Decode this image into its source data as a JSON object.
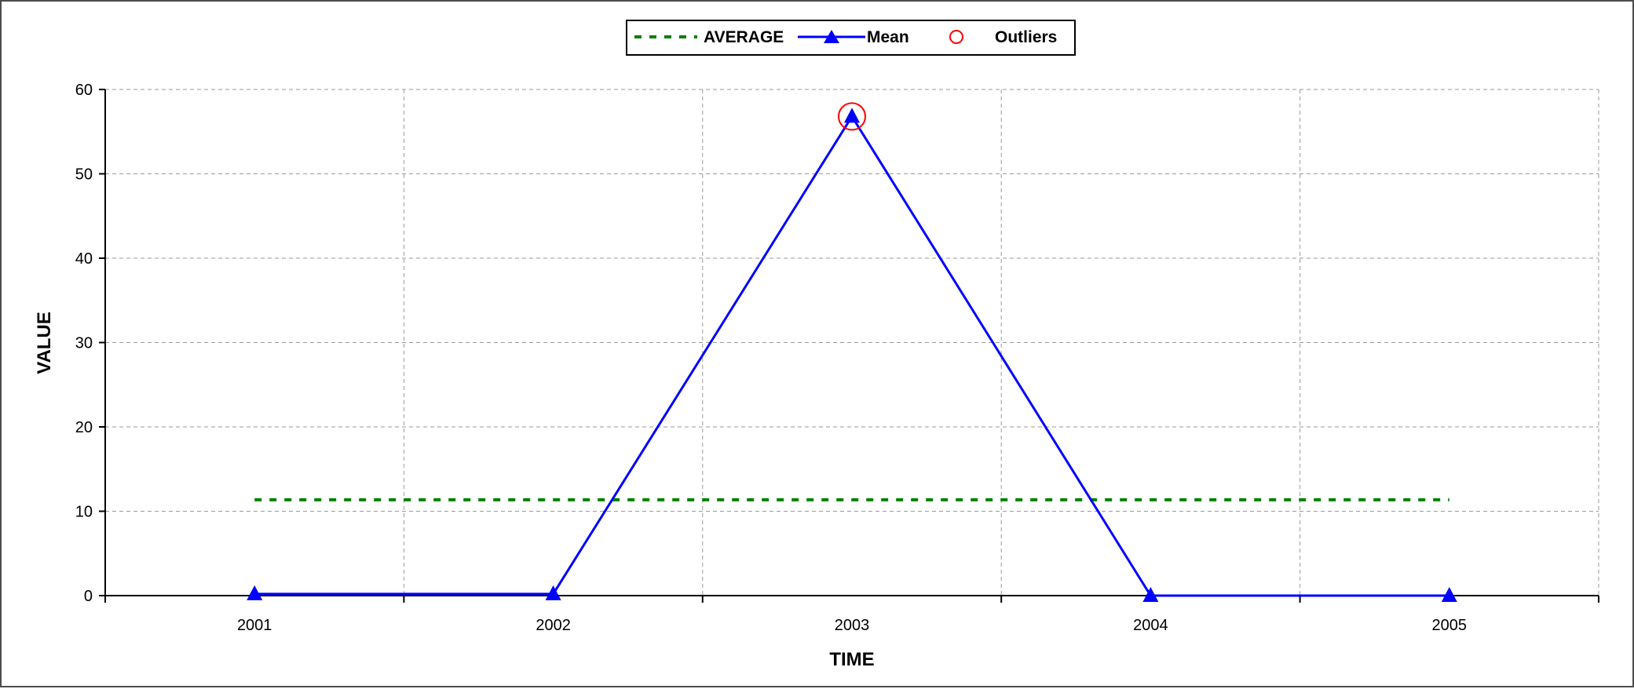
{
  "chart_data": {
    "type": "line",
    "xlabel": "TIME",
    "ylabel": "VALUE",
    "categories": [
      "2001",
      "2002",
      "2003",
      "2004",
      "2005"
    ],
    "ylim": [
      0,
      60
    ],
    "yticks": [
      0,
      10,
      20,
      30,
      40,
      50,
      60
    ],
    "grid": true,
    "legend_position": "top-center",
    "series": [
      {
        "name": "AVERAGE",
        "kind": "line",
        "style": "dashed",
        "color": "#008000",
        "values": [
          11.36,
          11.36,
          11.36,
          11.36,
          11.36
        ]
      },
      {
        "name": "Mean",
        "kind": "line-marker",
        "marker": "triangle",
        "color": "#0000ff",
        "values": [
          0.2,
          0.2,
          56.8,
          0,
          0
        ]
      },
      {
        "name": "Outliers",
        "kind": "scatter",
        "marker": "open-circle",
        "color": "#ff0000",
        "points": [
          {
            "x": "2003",
            "y": 56.8
          }
        ]
      }
    ]
  }
}
